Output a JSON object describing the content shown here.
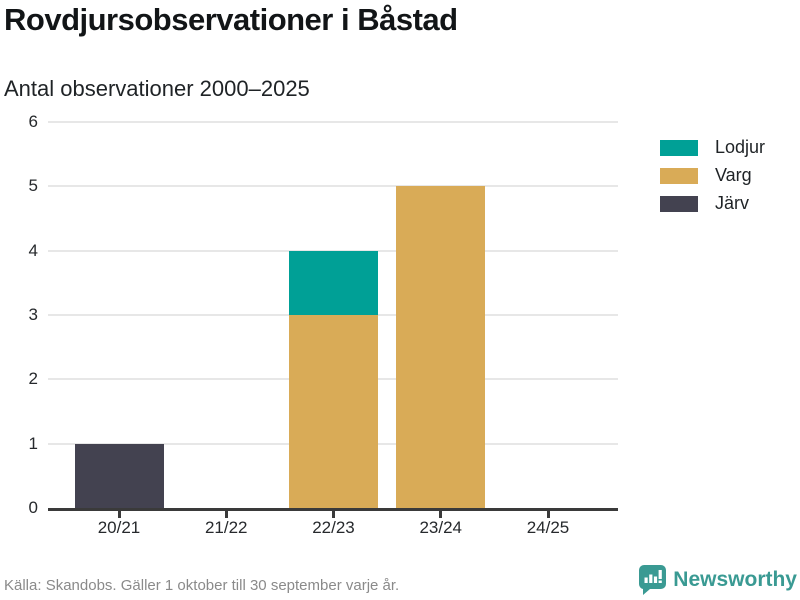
{
  "chart_data": {
    "type": "bar",
    "stacked": true,
    "title": "Rovdjursobservationer i Båstad",
    "subtitle": "Antal observationer 2000–2025",
    "categories": [
      "20/21",
      "21/22",
      "22/23",
      "23/24",
      "24/25"
    ],
    "series": [
      {
        "name": "Lodjur",
        "color": "#00a096",
        "values": [
          0,
          0,
          1,
          0,
          0
        ]
      },
      {
        "name": "Varg",
        "color": "#d9ab57",
        "values": [
          0,
          0,
          3,
          5,
          0
        ]
      },
      {
        "name": "Järv",
        "color": "#434250",
        "values": [
          1,
          0,
          0,
          0,
          0
        ]
      }
    ],
    "stack_order_bottom_to_top": [
      "Järv",
      "Varg",
      "Lodjur"
    ],
    "ylim": [
      0,
      6
    ],
    "yticks": [
      0,
      1,
      2,
      3,
      4,
      5,
      6
    ],
    "grid": true,
    "legend_position": "right",
    "xlabel": "",
    "ylabel": ""
  },
  "footer": {
    "source": "Källa: Skandobs. Gäller 1 oktober till 30 september varje år.",
    "brand": "Newsworthy"
  },
  "colors": {
    "axis": "#3a3a3a",
    "gridline": "#e7e7e7",
    "title_text": "#121517",
    "body_text": "#1f2326",
    "source_text": "#8a8a8a",
    "brand_teal": "#3a9a93"
  },
  "icons": {
    "newsworthy_logo": "speech-bubble-with-bar-chart-and-exclamation"
  }
}
